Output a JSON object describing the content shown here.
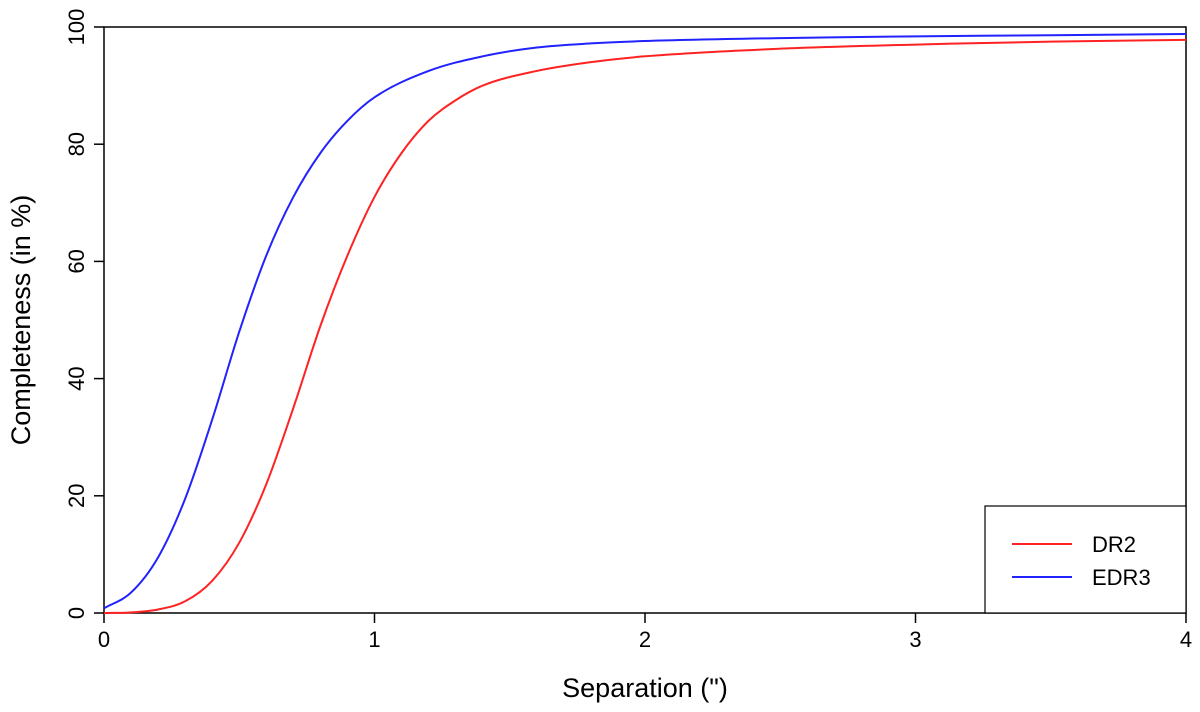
{
  "chart_data": {
    "type": "line",
    "xlabel": "Separation (\")",
    "ylabel": "Completeness (in %)",
    "xlim": [
      0,
      4
    ],
    "ylim": [
      0,
      100
    ],
    "xticks": [
      "0",
      "1",
      "2",
      "3",
      "4"
    ],
    "yticks": [
      "0",
      "20",
      "40",
      "60",
      "80",
      "100"
    ],
    "grid": false,
    "legend_position": "bottom-right",
    "series": [
      {
        "name": "DR2",
        "color": "#ff2222",
        "x": [
          0,
          0.1,
          0.2,
          0.3,
          0.4,
          0.5,
          0.6,
          0.7,
          0.8,
          0.9,
          1.0,
          1.1,
          1.2,
          1.3,
          1.4,
          1.6,
          1.8,
          2.0,
          2.5,
          3.0,
          3.5,
          4.0
        ],
        "y": [
          0,
          0.1,
          0.6,
          2.0,
          5.5,
          12,
          22,
          35,
          49,
          61,
          71,
          78.5,
          84,
          87.5,
          90,
          92.5,
          94,
          95,
          96.3,
          97,
          97.5,
          97.8
        ]
      },
      {
        "name": "EDR3",
        "color": "#2222ff",
        "x": [
          0,
          0.1,
          0.2,
          0.3,
          0.4,
          0.5,
          0.6,
          0.7,
          0.8,
          0.9,
          1.0,
          1.2,
          1.4,
          1.6,
          1.8,
          2.0,
          2.5,
          3.0,
          3.5,
          4.0
        ],
        "y": [
          0.8,
          3.5,
          9.5,
          19.5,
          33,
          48,
          61,
          71,
          78.5,
          84,
          88,
          92.5,
          95,
          96.5,
          97.2,
          97.6,
          98.1,
          98.4,
          98.6,
          98.8
        ]
      }
    ]
  }
}
